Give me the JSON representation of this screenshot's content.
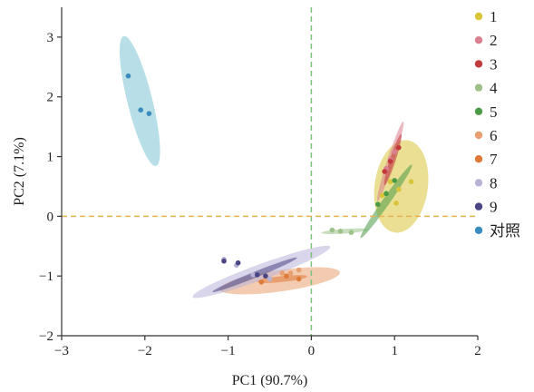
{
  "chart_data": {
    "type": "scatter",
    "title": "",
    "xlabel": "PC1 (90.7%)",
    "ylabel": "PC2 (7.1%)",
    "xlim": [
      -3,
      2
    ],
    "ylim": [
      -2,
      3.5
    ],
    "xticks": [
      "−3",
      "−2",
      "−1",
      "0",
      "1",
      "2"
    ],
    "yticks": [
      "−2",
      "−1",
      "0",
      "1",
      "2",
      "3"
    ],
    "reference_lines": [
      {
        "orientation": "vertical",
        "value": 0,
        "color": "#7cc47c",
        "style": "dashed"
      },
      {
        "orientation": "horizontal",
        "value": 0,
        "color": "#e8b255",
        "style": "dashed"
      }
    ],
    "legend_position": "right",
    "series": [
      {
        "name": "1",
        "color": "#d9c43a",
        "points": [
          [
            0.95,
            0.58
          ],
          [
            1.05,
            0.45
          ],
          [
            1.2,
            0.58
          ],
          [
            1.02,
            0.22
          ],
          [
            0.85,
            0.35
          ]
        ],
        "ellipse": {
          "center": [
            1.08,
            0.5
          ],
          "rx": 0.32,
          "ry": 0.78,
          "angle": 8
        }
      },
      {
        "name": "2",
        "color": "#d97f8f",
        "points": [
          [
            0.9,
            0.8
          ],
          [
            0.95,
            0.95
          ],
          [
            1.0,
            1.08
          ]
        ],
        "ellipse": {
          "center": [
            0.95,
            0.92
          ],
          "rx": 0.04,
          "ry": 0.7,
          "angle": 18
        }
      },
      {
        "name": "3",
        "color": "#c23a3a",
        "points": [
          [
            0.88,
            0.75
          ],
          [
            0.95,
            0.92
          ],
          [
            1.05,
            1.15
          ]
        ],
        "ellipse": {
          "center": [
            0.98,
            0.95
          ],
          "rx": 0.035,
          "ry": 0.45,
          "angle": 18
        }
      },
      {
        "name": "4",
        "color": "#9cc28a",
        "points": [
          [
            0.25,
            -0.23
          ],
          [
            0.35,
            -0.25
          ],
          [
            0.48,
            -0.27
          ]
        ],
        "ellipse": {
          "center": [
            0.4,
            -0.25
          ],
          "rx": 0.28,
          "ry": 0.04,
          "angle": -4
        }
      },
      {
        "name": "5",
        "color": "#4a9b45",
        "points": [
          [
            0.8,
            0.2
          ],
          [
            0.9,
            0.38
          ],
          [
            1.0,
            0.6
          ]
        ],
        "ellipse": {
          "center": [
            0.9,
            0.25
          ],
          "rx": 0.045,
          "ry": 0.75,
          "angle": 35
        }
      },
      {
        "name": "6",
        "color": "#e8a070",
        "points": [
          [
            -0.55,
            -1.05
          ],
          [
            -0.35,
            -0.95
          ],
          [
            -0.25,
            -0.95
          ],
          [
            -0.15,
            -0.9
          ]
        ],
        "ellipse": {
          "center": [
            -0.38,
            -1.08
          ],
          "rx": 0.73,
          "ry": 0.18,
          "angle": -8
        }
      },
      {
        "name": "7",
        "color": "#e07a3a",
        "points": [
          [
            -0.6,
            -1.1
          ],
          [
            -0.3,
            -1.0
          ],
          [
            -0.15,
            -1.05
          ]
        ],
        "ellipse": {
          "center": [
            -0.35,
            -1.05
          ],
          "rx": 0.3,
          "ry": 0.05,
          "angle": -6
        }
      },
      {
        "name": "8",
        "color": "#b9b3d8",
        "points": [
          [
            -1.05,
            -0.72
          ],
          [
            -0.9,
            -0.82
          ],
          [
            -0.7,
            -0.98
          ],
          [
            -0.5,
            -1.05
          ]
        ],
        "ellipse": {
          "center": [
            -0.6,
            -0.93
          ],
          "rx": 0.88,
          "ry": 0.13,
          "angle": -20
        }
      },
      {
        "name": "9",
        "color": "#4a4583",
        "points": [
          [
            -1.05,
            -0.75
          ],
          [
            -0.88,
            -0.78
          ],
          [
            -0.65,
            -0.98
          ],
          [
            -0.55,
            -1.0
          ]
        ],
        "ellipse": {
          "center": [
            -0.68,
            -0.98
          ],
          "rx": 0.55,
          "ry": 0.05,
          "angle": -22
        }
      },
      {
        "name": "对照",
        "color": "#3a8bbf",
        "fill": "#7ec4d5",
        "points": [
          [
            -2.2,
            2.35
          ],
          [
            -2.05,
            1.78
          ],
          [
            -1.95,
            1.72
          ]
        ],
        "ellipse": {
          "center": [
            -2.06,
            1.93
          ],
          "rx": 0.15,
          "ry": 1.12,
          "angle": -14
        }
      }
    ]
  }
}
